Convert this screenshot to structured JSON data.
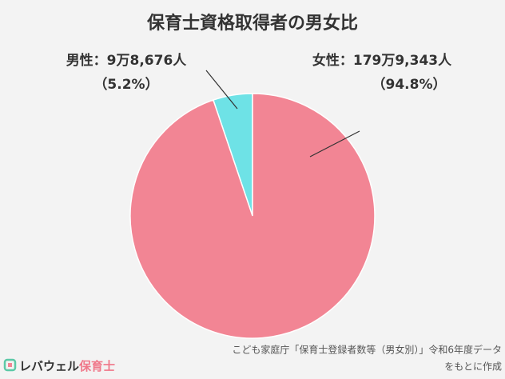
{
  "chart_data": {
    "type": "pie",
    "title": "保育士資格取得者の男女比",
    "categories": [
      "男性：9万8,676人",
      "女性：179万9,343人"
    ],
    "values": [
      5.2,
      94.8
    ],
    "value_labels": [
      "（5.2%）",
      "（94.8%）"
    ],
    "colors": [
      "#6ee2e6",
      "#f28594"
    ],
    "source": [
      "こども家庭庁「保育士登録者数等（男女別）」令和6年度データ",
      "をもとに作成"
    ]
  },
  "logo": {
    "brand": "レバウェル",
    "service": "保育士"
  }
}
